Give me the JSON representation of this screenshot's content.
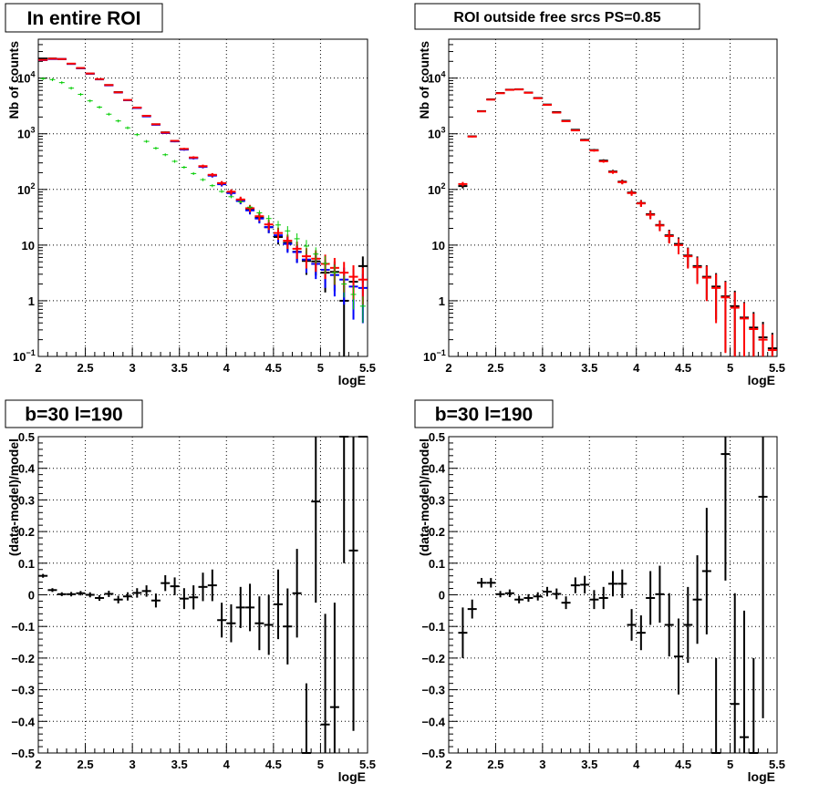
{
  "chart_data": [
    {
      "type": "scatter",
      "title": "In entire ROI",
      "xlabel": "logE",
      "ylabel": "Nb of counts",
      "xlim": [
        2,
        5.5
      ],
      "ylim": [
        0.1,
        50000
      ],
      "yscale": "log",
      "grid": true,
      "xticks": [
        "2",
        "2.5",
        "3",
        "3.5",
        "4",
        "4.5",
        "5",
        "5.5"
      ],
      "series": [
        {
          "color": "#000000",
          "x": [
            2.05,
            2.15,
            2.25,
            2.35,
            2.45,
            2.55,
            2.65,
            2.75,
            2.85,
            2.95,
            3.05,
            3.15,
            3.25,
            3.35,
            3.45,
            3.55,
            3.65,
            3.75,
            3.85,
            3.95,
            4.05,
            4.15,
            4.25,
            4.35,
            4.45,
            4.55,
            4.65,
            4.75,
            4.85,
            4.95,
            5.05,
            5.15,
            5.25,
            5.35,
            5.45
          ],
          "y": [
            22500,
            22500,
            22000,
            18000,
            15000,
            12000,
            9500,
            7500,
            5600,
            4000,
            2950,
            2100,
            1480,
            1060,
            745,
            530,
            370,
            260,
            180,
            128,
            89,
            64,
            44,
            31,
            21,
            14,
            11,
            7.6,
            5.2,
            5.1,
            3.2,
            3.3,
            1,
            2.2,
            4.2
          ]
        },
        {
          "color": "#0000ff",
          "x": [
            2.05,
            2.15,
            2.25,
            2.35,
            2.45,
            2.55,
            2.65,
            2.75,
            2.85,
            2.95,
            3.05,
            3.15,
            3.25,
            3.35,
            3.45,
            3.55,
            3.65,
            3.75,
            3.85,
            3.95,
            4.05,
            4.15,
            4.25,
            4.35,
            4.45,
            4.55,
            4.65,
            4.75,
            4.85,
            4.95,
            5.05,
            5.15,
            5.25,
            5.35,
            5.45
          ],
          "y": [
            21000,
            22000,
            22000,
            18000,
            15000,
            12000,
            9500,
            7400,
            5500,
            4000,
            2900,
            2050,
            1450,
            1030,
            730,
            520,
            365,
            255,
            177,
            124,
            86,
            62,
            42,
            30,
            21,
            15,
            10.5,
            7.5,
            5.5,
            4.6,
            3.6,
            2.9,
            2.4,
            1.8,
            1.7
          ]
        },
        {
          "color": "#ff0000",
          "x": [
            2.05,
            2.15,
            2.25,
            2.35,
            2.45,
            2.55,
            2.65,
            2.75,
            2.85,
            2.95,
            3.05,
            3.15,
            3.25,
            3.35,
            3.45,
            3.55,
            3.65,
            3.75,
            3.85,
            3.95,
            4.05,
            4.15,
            4.25,
            4.35,
            4.45,
            4.55,
            4.65,
            4.75,
            4.85,
            4.95,
            5.05,
            5.15,
            5.25,
            5.35,
            5.45
          ],
          "y": [
            21200,
            22300,
            22000,
            18200,
            15200,
            12100,
            9600,
            7500,
            5550,
            4050,
            2950,
            2100,
            1480,
            1050,
            745,
            535,
            375,
            262,
            183,
            130,
            91,
            66,
            46,
            33,
            23.5,
            16.5,
            12,
            8.6,
            6.3,
            5.7,
            4.6,
            3.9,
            3.2,
            2.7,
            2.4
          ]
        },
        {
          "color": "#00cc00",
          "x": [
            2.05,
            2.15,
            2.25,
            2.35,
            2.45,
            2.55,
            2.65,
            2.75,
            2.85,
            2.95,
            3.05,
            3.15,
            3.25,
            3.35,
            3.45,
            3.55,
            3.65,
            3.75,
            3.85,
            3.95,
            4.05,
            4.15,
            4.25,
            4.35,
            4.45,
            4.55,
            4.65,
            4.75,
            4.85,
            4.95,
            5.05,
            5.15,
            5.25,
            5.35,
            5.45
          ],
          "y": [
            9800,
            9400,
            8300,
            6600,
            5100,
            3900,
            3000,
            2250,
            1700,
            1280,
            965,
            730,
            550,
            420,
            320,
            250,
            193,
            150,
            117,
            92,
            74,
            60,
            48,
            38,
            30,
            23,
            18,
            13,
            9.6,
            6.9,
            4.7,
            3.2,
            2,
            1.3,
            0.8
          ]
        }
      ]
    },
    {
      "type": "scatter",
      "title": "ROI outside free srcs PS=0.85",
      "xlabel": "logE",
      "ylabel": "Nb of counts",
      "xlim": [
        2,
        5.5
      ],
      "ylim": [
        0.1,
        50000
      ],
      "yscale": "log",
      "grid": true,
      "xticks": [
        "2",
        "2.5",
        "3",
        "3.5",
        "4",
        "4.5",
        "5",
        "5.5"
      ],
      "series": [
        {
          "color": "#000000",
          "x": [
            2.15,
            2.25,
            2.35,
            2.45,
            2.55,
            2.65,
            2.75,
            2.85,
            2.95,
            3.05,
            3.15,
            3.25,
            3.35,
            3.45,
            3.55,
            3.65,
            3.75,
            3.85,
            3.95,
            4.05,
            4.15,
            4.25,
            4.35,
            4.45,
            4.55,
            4.65,
            4.75,
            4.85,
            4.95,
            5.05,
            5.15,
            5.25,
            5.35,
            5.45
          ],
          "y": [
            115,
            900,
            2550,
            4150,
            5400,
            6200,
            6300,
            5500,
            4400,
            3350,
            2450,
            1720,
            1180,
            780,
            510,
            330,
            210,
            138,
            88,
            57,
            36,
            23,
            15,
            10.5,
            6.5,
            4.2,
            2.7,
            1.8,
            1.2,
            0.8,
            0.5,
            0.33,
            0.22,
            0.14
          ]
        },
        {
          "color": "#ff0000",
          "x": [
            2.15,
            2.25,
            2.35,
            2.45,
            2.55,
            2.65,
            2.75,
            2.85,
            2.95,
            3.05,
            3.15,
            3.25,
            3.35,
            3.45,
            3.55,
            3.65,
            3.75,
            3.85,
            3.95,
            4.05,
            4.15,
            4.25,
            4.35,
            4.45,
            4.55,
            4.65,
            4.75,
            4.85,
            4.95,
            5.05,
            5.15,
            5.25,
            5.35,
            5.45
          ],
          "y": [
            125,
            890,
            2520,
            4100,
            5350,
            6150,
            6250,
            5450,
            4350,
            3300,
            2400,
            1680,
            1150,
            760,
            500,
            320,
            205,
            135,
            86,
            56,
            35,
            22.5,
            14.5,
            10,
            6.3,
            4,
            2.6,
            1.7,
            1.15,
            0.75,
            0.48,
            0.31,
            0.2,
            0.13
          ]
        }
      ]
    },
    {
      "type": "scatter",
      "title": "b=30 l=190",
      "xlabel": "logE",
      "ylabel": "(data-model)/model",
      "xlim": [
        2,
        5.5
      ],
      "ylim": [
        -0.5,
        0.5
      ],
      "grid": true,
      "xticks": [
        "2",
        "2.5",
        "3",
        "3.5",
        "4",
        "4.5",
        "5",
        "5.5"
      ],
      "yticks": [
        "−0.5",
        "−0.4",
        "−0.3",
        "−0.2",
        "−0.1",
        "0",
        "0.1",
        "0.2",
        "0.3",
        "0.4",
        "0.5"
      ],
      "series": [
        {
          "color": "#000000",
          "x": [
            2.05,
            2.15,
            2.25,
            2.35,
            2.45,
            2.55,
            2.65,
            2.75,
            2.85,
            2.95,
            3.05,
            3.15,
            3.25,
            3.35,
            3.45,
            3.55,
            3.65,
            3.75,
            3.85,
            3.95,
            4.05,
            4.15,
            4.25,
            4.35,
            4.45,
            4.55,
            4.65,
            4.75,
            4.85,
            4.95,
            5.05,
            5.15,
            5.25,
            5.35,
            5.45
          ],
          "y": [
            0.06,
            0.015,
            0.002,
            0.002,
            0.005,
            0.0,
            -0.01,
            0.003,
            -0.015,
            -0.005,
            0.006,
            0.012,
            -0.018,
            0.037,
            0.027,
            -0.012,
            -0.008,
            0.025,
            0.03,
            -0.08,
            -0.09,
            -0.04,
            -0.04,
            -0.09,
            -0.095,
            -0.03,
            -0.1,
            0.005,
            -0.5,
            0.295,
            -0.41,
            -0.355,
            0.5,
            0.14,
            0.5
          ],
          "err": [
            0.006,
            0.006,
            0.006,
            0.007,
            0.007,
            0.008,
            0.009,
            0.01,
            0.012,
            0.013,
            0.015,
            0.018,
            0.022,
            0.025,
            0.028,
            0.033,
            0.038,
            0.045,
            0.05,
            0.055,
            0.06,
            0.065,
            0.075,
            0.085,
            0.095,
            0.11,
            0.12,
            0.14,
            0.22,
            0.32,
            0.35,
            0.33,
            0.4,
            0.57,
            0.0
          ]
        }
      ]
    },
    {
      "type": "scatter",
      "title": "b=30 l=190",
      "xlabel": "logE",
      "ylabel": "(data-model)/model",
      "xlim": [
        2,
        5.5
      ],
      "ylim": [
        -0.5,
        0.5
      ],
      "grid": true,
      "xticks": [
        "2",
        "2.5",
        "3",
        "3.5",
        "4",
        "4.5",
        "5",
        "5.5"
      ],
      "yticks": [
        "−0.5",
        "−0.4",
        "−0.3",
        "−0.2",
        "−0.1",
        "0",
        "0.1",
        "0.2",
        "0.3",
        "0.4",
        "0.5"
      ],
      "series": [
        {
          "color": "#000000",
          "x": [
            2.15,
            2.25,
            2.35,
            2.45,
            2.55,
            2.65,
            2.75,
            2.85,
            2.95,
            3.05,
            3.15,
            3.25,
            3.35,
            3.45,
            3.55,
            3.65,
            3.75,
            3.85,
            3.95,
            4.05,
            4.15,
            4.25,
            4.35,
            4.45,
            4.55,
            4.65,
            4.75,
            4.85,
            4.95,
            5.05,
            5.15,
            5.25,
            5.35
          ],
          "y": [
            -0.12,
            -0.045,
            0.038,
            0.038,
            0.002,
            0.005,
            -0.015,
            -0.01,
            -0.005,
            0.01,
            0.003,
            -0.025,
            0.03,
            0.032,
            -0.015,
            -0.01,
            0.035,
            0.035,
            -0.095,
            -0.12,
            -0.01,
            0.002,
            -0.095,
            -0.195,
            -0.095,
            -0.015,
            0.075,
            -0.5,
            0.445,
            -0.345,
            -0.45,
            -0.5,
            0.31
          ],
          "err": [
            0.08,
            0.03,
            0.015,
            0.015,
            0.01,
            0.012,
            0.012,
            0.012,
            0.013,
            0.015,
            0.017,
            0.02,
            0.025,
            0.028,
            0.03,
            0.035,
            0.04,
            0.045,
            0.05,
            0.055,
            0.085,
            0.09,
            0.1,
            0.12,
            0.12,
            0.14,
            0.2,
            0.3,
            0.4,
            0.35,
            0.4,
            0.3,
            0.7
          ]
        }
      ]
    }
  ]
}
